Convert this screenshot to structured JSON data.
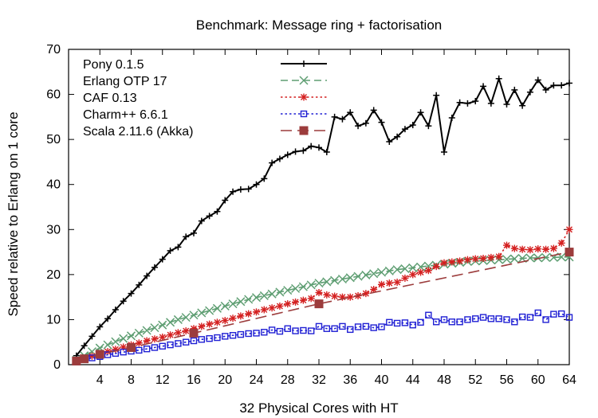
{
  "chart_data": {
    "type": "line",
    "title": "Benchmark: Message ring + factorisation",
    "xlabel": "32 Physical Cores with HT",
    "ylabel": "Speed relative to Erlang on 1 core",
    "xlim": [
      0,
      64
    ],
    "ylim": [
      0,
      70
    ],
    "xticks": [
      4,
      8,
      12,
      16,
      20,
      24,
      28,
      32,
      36,
      40,
      44,
      48,
      52,
      56,
      60,
      64
    ],
    "yticks": [
      0,
      10,
      20,
      30,
      40,
      50,
      60,
      70
    ],
    "grid": false,
    "legend_position": "top-left",
    "series": [
      {
        "name": "Pony 0.1.5",
        "color": "#000000",
        "dash": "solid",
        "marker": "plus",
        "x": [
          1,
          2,
          3,
          4,
          5,
          6,
          7,
          8,
          9,
          10,
          11,
          12,
          13,
          14,
          15,
          16,
          17,
          18,
          19,
          20,
          21,
          22,
          23,
          24,
          25,
          26,
          27,
          28,
          29,
          30,
          31,
          32,
          33,
          34,
          35,
          36,
          37,
          38,
          39,
          40,
          41,
          42,
          43,
          44,
          45,
          46,
          47,
          48,
          49,
          50,
          51,
          52,
          53,
          54,
          55,
          56,
          57,
          58,
          59,
          60,
          61,
          62,
          63,
          64
        ],
        "values": [
          2.0,
          4.2,
          6.3,
          8.4,
          10.2,
          12.2,
          14.1,
          15.8,
          17.7,
          19.7,
          21.6,
          23.4,
          25.3,
          26.1,
          28.4,
          29.2,
          31.9,
          33.0,
          34.0,
          36.5,
          38.4,
          38.9,
          39.0,
          40.0,
          41.3,
          44.8,
          45.7,
          46.6,
          47.3,
          47.5,
          48.5,
          48.2,
          47.2,
          55.0,
          54.5,
          56.0,
          53.0,
          53.6,
          56.5,
          53.8,
          49.5,
          50.6,
          52.3,
          53.2,
          56.0,
          53.0,
          59.8,
          47.2,
          54.8,
          58.2,
          58.0,
          58.5,
          61.8,
          58.0,
          63.5,
          57.8,
          61.0,
          57.5,
          60.5,
          63.2,
          61.0,
          62.0,
          62.0,
          62.5
        ]
      },
      {
        "name": "Erlang OTP 17",
        "color": "#5e9e72",
        "dash": "dashed",
        "marker": "cross",
        "x": [
          1,
          2,
          3,
          4,
          5,
          6,
          7,
          8,
          9,
          10,
          11,
          12,
          13,
          14,
          15,
          16,
          17,
          18,
          19,
          20,
          21,
          22,
          23,
          24,
          25,
          26,
          27,
          28,
          29,
          30,
          31,
          32,
          33,
          34,
          35,
          36,
          37,
          38,
          39,
          40,
          41,
          42,
          43,
          44,
          45,
          46,
          47,
          48,
          49,
          50,
          51,
          52,
          53,
          54,
          55,
          56,
          57,
          58,
          59,
          60,
          61,
          62,
          63,
          64
        ],
        "values": [
          1.0,
          2.0,
          2.9,
          3.7,
          4.4,
          5.1,
          5.8,
          6.4,
          7.0,
          7.6,
          8.2,
          8.8,
          9.4,
          10.0,
          10.5,
          11.0,
          11.5,
          12.0,
          12.5,
          13.0,
          13.5,
          14.0,
          14.5,
          14.9,
          15.3,
          15.7,
          16.1,
          16.5,
          16.9,
          17.3,
          17.7,
          18.1,
          18.4,
          18.7,
          19.0,
          19.3,
          19.6,
          19.9,
          20.2,
          20.5,
          20.8,
          21.1,
          21.3,
          21.5,
          21.7,
          21.9,
          22.1,
          22.3,
          22.5,
          22.7,
          22.9,
          23.0,
          23.1,
          23.2,
          23.3,
          23.4,
          23.5,
          23.6,
          23.7,
          23.7,
          23.8,
          23.8,
          23.9,
          23.9
        ]
      },
      {
        "name": "CAF 0.13",
        "color": "#d42020",
        "dash": "dotted",
        "marker": "star",
        "x": [
          1,
          2,
          3,
          4,
          5,
          6,
          7,
          8,
          9,
          10,
          11,
          12,
          13,
          14,
          15,
          16,
          17,
          18,
          19,
          20,
          21,
          22,
          23,
          24,
          25,
          26,
          27,
          28,
          29,
          30,
          31,
          32,
          33,
          34,
          35,
          36,
          37,
          38,
          39,
          40,
          41,
          42,
          43,
          44,
          45,
          46,
          47,
          48,
          49,
          50,
          51,
          52,
          53,
          54,
          55,
          56,
          57,
          58,
          59,
          60,
          61,
          62,
          63,
          64
        ],
        "values": [
          0.8,
          1.4,
          1.9,
          2.4,
          2.9,
          3.4,
          3.9,
          4.4,
          4.8,
          5.3,
          5.7,
          6.1,
          6.6,
          7.1,
          7.5,
          8.0,
          8.5,
          9.0,
          9.4,
          9.8,
          10.3,
          10.8,
          11.3,
          11.7,
          12.2,
          12.6,
          13.0,
          13.5,
          13.9,
          14.3,
          14.7,
          16.0,
          15.5,
          15.2,
          15.0,
          15.0,
          15.3,
          15.8,
          16.7,
          17.8,
          18.1,
          18.3,
          19.2,
          20.0,
          20.5,
          20.9,
          21.8,
          22.6,
          22.8,
          23.0,
          23.3,
          23.5,
          23.6,
          23.8,
          24.0,
          26.5,
          25.8,
          25.6,
          25.5,
          25.7,
          25.6,
          25.8,
          27.0,
          30.0
        ]
      },
      {
        "name": "Charm++ 6.6.1",
        "color": "#2020d4",
        "dash": "dotted",
        "marker": "square-open",
        "x": [
          1,
          2,
          3,
          4,
          5,
          6,
          7,
          8,
          9,
          10,
          11,
          12,
          13,
          14,
          15,
          16,
          17,
          18,
          19,
          20,
          21,
          22,
          23,
          24,
          25,
          26,
          27,
          28,
          29,
          30,
          31,
          32,
          33,
          34,
          35,
          36,
          37,
          38,
          39,
          40,
          41,
          42,
          43,
          44,
          45,
          46,
          47,
          48,
          49,
          50,
          51,
          52,
          53,
          54,
          55,
          56,
          57,
          58,
          59,
          60,
          61,
          62,
          63,
          64
        ],
        "values": [
          0.6,
          1.1,
          1.5,
          1.8,
          2.2,
          2.5,
          2.8,
          3.0,
          3.2,
          3.5,
          3.8,
          4.1,
          4.4,
          4.7,
          5.0,
          5.3,
          5.6,
          5.8,
          6.0,
          6.3,
          6.5,
          6.7,
          6.9,
          7.0,
          7.2,
          7.7,
          7.4,
          8.0,
          7.5,
          7.6,
          7.5,
          8.5,
          8.0,
          8.0,
          8.5,
          7.8,
          8.4,
          8.5,
          8.2,
          8.4,
          9.4,
          9.2,
          9.3,
          8.8,
          9.4,
          11.0,
          9.5,
          10.0,
          9.5,
          9.5,
          10.0,
          10.2,
          10.5,
          10.2,
          10.2,
          10.0,
          9.5,
          10.6,
          10.5,
          11.5,
          10.0,
          11.2,
          11.3,
          10.5
        ]
      },
      {
        "name": "Scala 2.11.6 (Akka)",
        "color": "#9c3c3c",
        "dash": "long-dash",
        "marker": "square-filled",
        "x": [
          1,
          2,
          4,
          8,
          16,
          32,
          64
        ],
        "values": [
          0.8,
          1.3,
          2.3,
          3.8,
          7.0,
          13.5,
          25.0
        ]
      }
    ]
  }
}
